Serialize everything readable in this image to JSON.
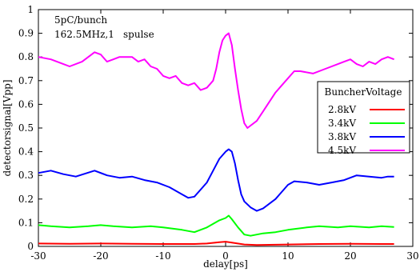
{
  "chart_data": {
    "type": "line",
    "xlabel": "delay[ps]",
    "ylabel": "detectorsignal[Vpp]",
    "xlim": [
      -30,
      30
    ],
    "ylim": [
      0,
      1
    ],
    "xticks": [
      "-30",
      "-20",
      "-10",
      "0",
      "10",
      "20",
      "30"
    ],
    "yticks": [
      "0",
      "0.1",
      "0.2",
      "0.3",
      "0.4",
      "0.5",
      "0.6",
      "0.7",
      "0.8",
      "0.9",
      "1"
    ],
    "grid": false,
    "annotations": {
      "line1": "5pC/bunch",
      "line2": "162.5MHz,1",
      "line3": "spulse"
    },
    "legend": {
      "title": "BuncherVoltage",
      "position": "right"
    },
    "series": [
      {
        "name": "2.8kV",
        "color": "#ff0000",
        "x": [
          -30,
          -25,
          -20,
          -15,
          -10,
          -5,
          -3,
          -1,
          0,
          1,
          3,
          5,
          10,
          15,
          20,
          25,
          27
        ],
        "y": [
          0.012,
          0.011,
          0.012,
          0.011,
          0.01,
          0.01,
          0.012,
          0.018,
          0.02,
          0.016,
          0.008,
          0.006,
          0.008,
          0.01,
          0.011,
          0.01,
          0.01
        ]
      },
      {
        "name": "3.4kV",
        "color": "#00ff00",
        "x": [
          -30,
          -28,
          -25,
          -22,
          -20,
          -18,
          -15,
          -12,
          -10,
          -7,
          -5,
          -3,
          -1,
          0,
          0.5,
          1,
          2,
          3,
          4,
          6,
          8,
          10,
          13,
          15,
          18,
          20,
          23,
          25,
          27
        ],
        "y": [
          0.09,
          0.085,
          0.08,
          0.085,
          0.09,
          0.085,
          0.08,
          0.085,
          0.08,
          0.07,
          0.06,
          0.08,
          0.11,
          0.12,
          0.13,
          0.115,
          0.08,
          0.05,
          0.045,
          0.055,
          0.06,
          0.07,
          0.08,
          0.085,
          0.08,
          0.085,
          0.08,
          0.085,
          0.082
        ]
      },
      {
        "name": "3.8kV",
        "color": "#0000ff",
        "x": [
          -30,
          -28,
          -26,
          -24,
          -21,
          -19,
          -17,
          -15,
          -13,
          -11,
          -9,
          -7,
          -6,
          -5,
          -4,
          -3,
          -2,
          -1,
          0,
          0.5,
          1,
          1.5,
          2,
          2.5,
          3,
          4,
          5,
          6,
          7,
          8,
          9,
          10,
          11,
          13,
          15,
          17,
          19,
          21,
          23,
          25,
          26,
          27
        ],
        "y": [
          0.31,
          0.32,
          0.305,
          0.295,
          0.32,
          0.3,
          0.29,
          0.295,
          0.28,
          0.27,
          0.25,
          0.22,
          0.205,
          0.21,
          0.24,
          0.27,
          0.32,
          0.37,
          0.4,
          0.41,
          0.4,
          0.35,
          0.28,
          0.22,
          0.19,
          0.165,
          0.15,
          0.16,
          0.18,
          0.2,
          0.23,
          0.26,
          0.275,
          0.27,
          0.26,
          0.27,
          0.28,
          0.3,
          0.295,
          0.29,
          0.295,
          0.295
        ]
      },
      {
        "name": "4.5kV",
        "color": "#ff00ff",
        "x": [
          -30,
          -28,
          -26,
          -25,
          -23,
          -22,
          -21,
          -20,
          -19,
          -18,
          -17,
          -15,
          -14,
          -13,
          -12,
          -11,
          -10,
          -9,
          -8,
          -7,
          -6,
          -5,
          -4,
          -3,
          -2,
          -1.5,
          -1,
          -0.5,
          0,
          0.5,
          1,
          1.5,
          2,
          2.5,
          3,
          3.5,
          4,
          5,
          6,
          7,
          8,
          9,
          10,
          11,
          12,
          14,
          16,
          18,
          19,
          20,
          21,
          22,
          23,
          24,
          25,
          26,
          27
        ],
        "y": [
          0.8,
          0.79,
          0.77,
          0.76,
          0.78,
          0.8,
          0.82,
          0.81,
          0.78,
          0.79,
          0.8,
          0.8,
          0.78,
          0.79,
          0.76,
          0.75,
          0.72,
          0.71,
          0.72,
          0.69,
          0.68,
          0.69,
          0.66,
          0.67,
          0.7,
          0.75,
          0.82,
          0.87,
          0.89,
          0.9,
          0.85,
          0.75,
          0.66,
          0.58,
          0.52,
          0.5,
          0.51,
          0.53,
          0.57,
          0.61,
          0.65,
          0.68,
          0.71,
          0.74,
          0.74,
          0.73,
          0.75,
          0.77,
          0.78,
          0.79,
          0.77,
          0.76,
          0.78,
          0.77,
          0.79,
          0.8,
          0.79
        ]
      }
    ]
  }
}
